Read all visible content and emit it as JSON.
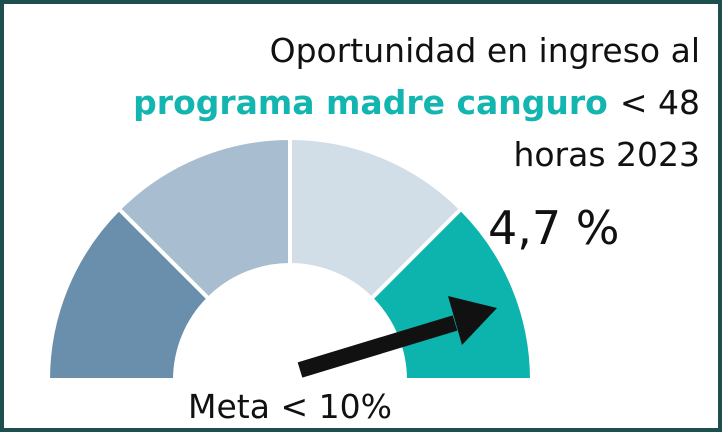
{
  "title": {
    "line1": "Oportunidad en ingreso al",
    "highlight": "programa madre canguro",
    "line2_rest": "< 48",
    "line3": "horas 2023"
  },
  "value": "4,7 %",
  "goal": "Meta < 10%"
}
